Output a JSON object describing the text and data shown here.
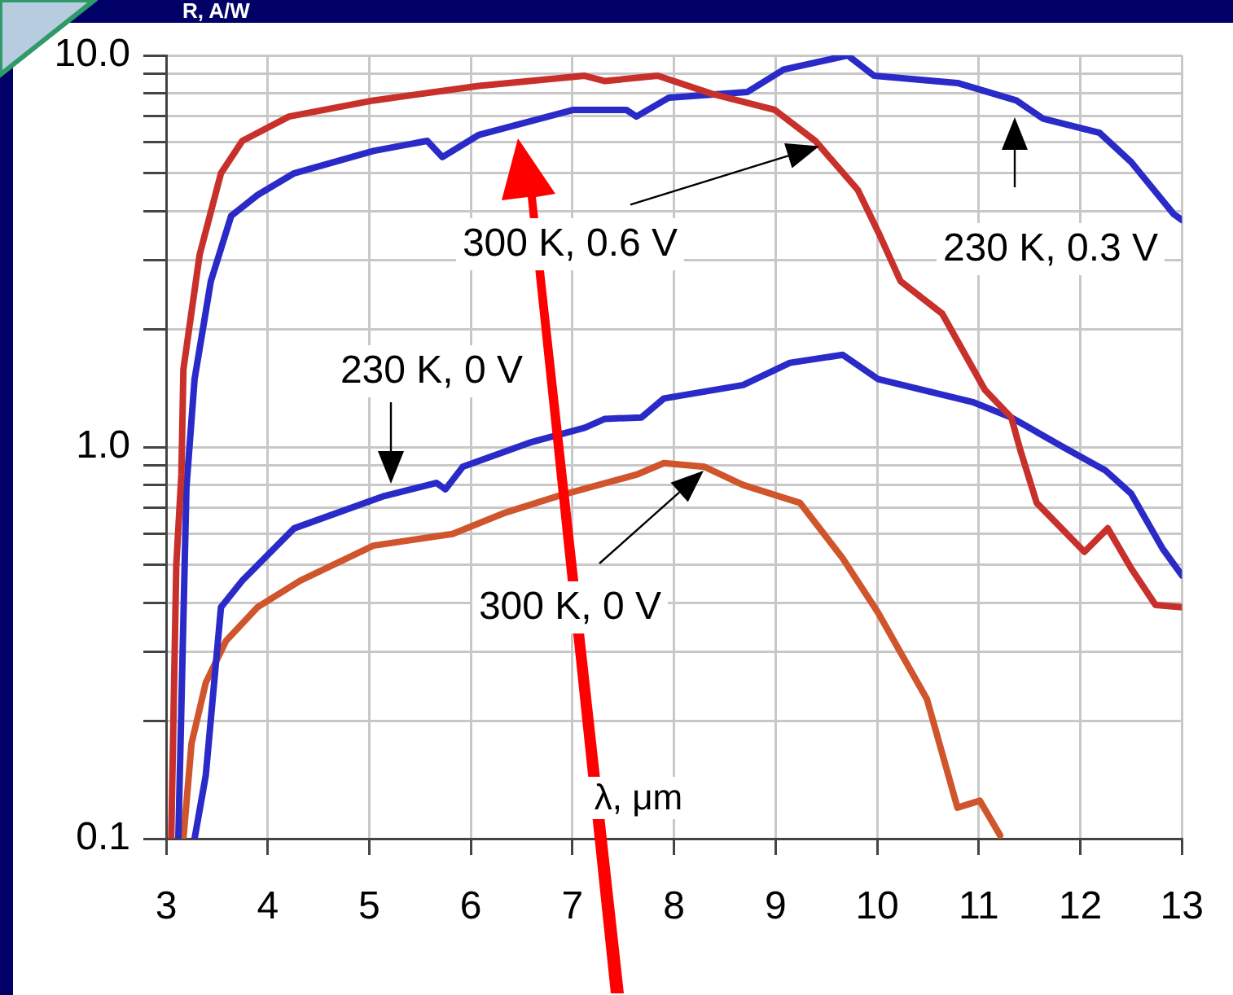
{
  "chart_data": {
    "type": "line",
    "ylabel": "R, A/W",
    "xlabel": "λ, μm",
    "log": "y",
    "grid": true,
    "legend": false,
    "marker": "none",
    "line_style": "solid",
    "xlim": [
      3,
      13
    ],
    "xticks": [
      3,
      4,
      5,
      6,
      7,
      8,
      9,
      10,
      11,
      12,
      13
    ],
    "ylim": [
      0.1,
      10
    ],
    "yticks": [
      {
        "value": 0.1,
        "label": "0.1"
      },
      {
        "value": 0.2,
        "label": null
      },
      {
        "value": 0.3,
        "label": null
      },
      {
        "value": 0.4,
        "label": null
      },
      {
        "value": 0.5,
        "label": null
      },
      {
        "value": 0.6,
        "label": null
      },
      {
        "value": 0.7,
        "label": null
      },
      {
        "value": 0.8,
        "label": null
      },
      {
        "value": 0.9,
        "label": null
      },
      {
        "value": 1,
        "label": "1.0"
      },
      {
        "value": 2,
        "label": null
      },
      {
        "value": 3,
        "label": null
      },
      {
        "value": 4,
        "label": null
      },
      {
        "value": 5,
        "label": null
      },
      {
        "value": 6,
        "label": null
      },
      {
        "value": 7,
        "label": null
      },
      {
        "value": 8,
        "label": null
      },
      {
        "value": 9,
        "label": null
      },
      {
        "value": 10,
        "label": "10.0"
      }
    ],
    "series": [
      {
        "color": "#c8302c",
        "x": [
          3.05,
          3.1,
          3.15,
          3.17,
          3.33,
          3.54,
          3.75,
          4.21,
          5.04,
          6.08,
          7.12,
          7.32,
          7.84,
          8.37,
          8.99,
          9.39,
          9.81,
          10.01,
          10.23,
          10.64,
          11.06,
          11.32,
          11.41,
          11.57,
          12.04,
          12.27,
          12.5,
          12.74,
          13
        ],
        "values": [
          0.1,
          0.5,
          0.85,
          1.58,
          3.1,
          5.0,
          6.05,
          6.98,
          7.67,
          8.36,
          8.87,
          8.6,
          8.87,
          7.98,
          7.26,
          6.05,
          4.53,
          3.54,
          2.65,
          2.19,
          1.4,
          1.19,
          0.98,
          0.72,
          0.54,
          0.62,
          0.49,
          0.395,
          0.39
        ]
      },
      {
        "color": "#2a2ac8",
        "x": [
          3.12,
          3.2,
          3.28,
          3.44,
          3.64,
          3.9,
          4.26,
          5.04,
          5.57,
          5.72,
          6.08,
          7.01,
          7.53,
          7.63,
          7.95,
          8.72,
          9.08,
          9.71,
          9.97,
          10.79,
          11.37,
          11.63,
          12.19,
          12.5,
          12.92,
          13
        ],
        "values": [
          0.1,
          0.79,
          1.49,
          2.65,
          3.89,
          4.4,
          5.0,
          5.7,
          6.05,
          5.5,
          6.27,
          7.26,
          7.26,
          6.98,
          7.8,
          8.06,
          9.2,
          10.0,
          8.87,
          8.5,
          7.67,
          6.9,
          6.34,
          5.34,
          3.93,
          3.8
        ]
      },
      {
        "color": "#2a2ac8",
        "x": [
          3.28,
          3.39,
          3.54,
          3.75,
          4.26,
          5.15,
          5.66,
          5.75,
          5.92,
          6.6,
          7.12,
          7.32,
          7.68,
          7.9,
          8.68,
          9.14,
          9.66,
          10.01,
          10.95,
          11.32,
          11.83,
          12.25,
          12.5,
          12.81,
          13
        ],
        "values": [
          0.1,
          0.145,
          0.39,
          0.456,
          0.62,
          0.75,
          0.81,
          0.78,
          0.89,
          1.03,
          1.12,
          1.18,
          1.19,
          1.33,
          1.44,
          1.64,
          1.72,
          1.49,
          1.3,
          1.19,
          1.0,
          0.87,
          0.76,
          0.55,
          0.47
        ]
      },
      {
        "color": "#d0542c",
        "x": [
          3.17,
          3.25,
          3.39,
          3.59,
          3.9,
          4.32,
          5.04,
          5.82,
          6.34,
          6.86,
          7.63,
          7.9,
          8.3,
          8.68,
          9.24,
          9.66,
          10.01,
          10.49,
          10.79,
          11.01,
          11.21
        ],
        "values": [
          0.1,
          0.175,
          0.25,
          0.32,
          0.39,
          0.456,
          0.56,
          0.6,
          0.68,
          0.75,
          0.85,
          0.91,
          0.89,
          0.8,
          0.72,
          0.52,
          0.377,
          0.227,
          0.12,
          0.125,
          0.102
        ]
      }
    ],
    "annotations": [
      "300 K, 0.6 V",
      "230 K, 0.3 V",
      "230 K, 0 V",
      "300 K, 0 V"
    ]
  }
}
